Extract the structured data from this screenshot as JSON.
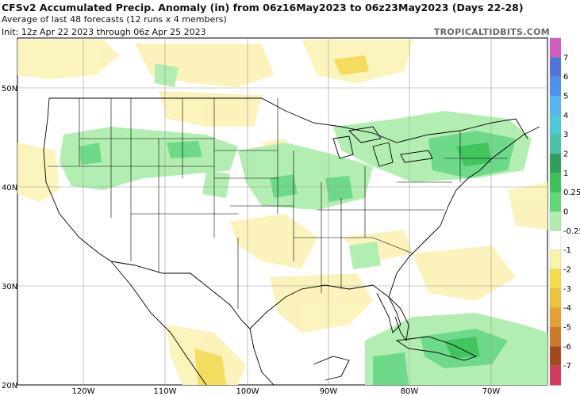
{
  "header": {
    "title": "CFSv2 Accumulated Precip. Anomaly (in) from 06z16May2023 to 06z23May2023 (Days 22-28)",
    "subtitle1": "Average of last 48 forecasts (12 runs x 4 members)",
    "subtitle2": "Init: 12z Apr 22 2023 through 06z Apr 25 2023",
    "credit": "TROPICALTIDBITS.COM"
  },
  "map": {
    "lat_labels": [
      "50N",
      "40N",
      "30N",
      "20N"
    ],
    "lon_labels": [
      "120W",
      "110W",
      "100W",
      "90W",
      "80W",
      "70W"
    ]
  },
  "colorbar": {
    "labels": [
      "7",
      "6",
      "5",
      "4",
      "3",
      "2",
      "1",
      "0.25",
      "0",
      "-0.25",
      "-1",
      "-2",
      "-3",
      "-4",
      "-5",
      "-6",
      "-7"
    ],
    "colors": [
      "#d25fc0",
      "#4f74d8",
      "#4a93e8",
      "#54b6ee",
      "#4fc9d8",
      "#4cc3a8",
      "#2e9e5a",
      "#3ec15a",
      "#61d878",
      "#b0ecb0",
      "#ffffff",
      "#fbf3a6",
      "#f3dc4e",
      "#efc23e",
      "#e5a036",
      "#cc7a2e",
      "#a4481e",
      "#cf3a5d"
    ]
  }
}
